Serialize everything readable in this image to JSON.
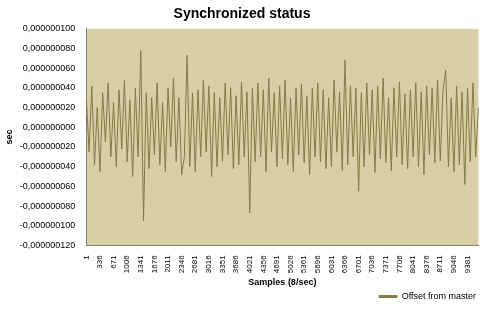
{
  "chart_data": {
    "type": "line",
    "title": "Synchronized status",
    "x_label": "Samples (8/sec)",
    "y_label": "sec",
    "categories": [
      "1",
      null,
      null,
      null,
      null,
      "336",
      null,
      null,
      null,
      null,
      "671",
      null,
      null,
      null,
      null,
      "1006",
      null,
      null,
      null,
      null,
      "1341",
      null,
      null,
      null,
      null,
      "1676",
      null,
      null,
      null,
      null,
      "2011",
      null,
      null,
      null,
      null,
      "2346",
      null,
      null,
      null,
      null,
      "2681",
      null,
      null,
      null,
      null,
      "3016",
      null,
      null,
      null,
      null,
      "3351",
      null,
      null,
      null,
      null,
      "3686",
      null,
      null,
      null,
      null,
      "4021",
      null,
      null,
      null,
      null,
      "4356",
      null,
      null,
      null,
      null,
      "4691",
      null,
      null,
      null,
      null,
      "5026",
      null,
      null,
      null,
      null,
      "5361",
      null,
      null,
      null,
      null,
      "5696",
      null,
      null,
      null,
      null,
      "6031",
      null,
      null,
      null,
      null,
      "6366",
      null,
      null,
      null,
      null,
      "6701",
      null,
      null,
      null,
      null,
      "7036",
      null,
      null,
      null,
      null,
      "7371",
      null,
      null,
      null,
      null,
      "7706",
      null,
      null,
      null,
      null,
      "8041",
      null,
      null,
      null,
      null,
      "8376",
      null,
      null,
      null,
      null,
      "8711",
      null,
      null,
      null,
      null,
      "9046",
      null,
      null,
      null,
      null,
      "9381",
      null,
      null,
      null,
      null
    ],
    "series": [
      {
        "name": "Offset from master",
        "color": "#857a48",
        "values": [
          3e-08,
          -2.5e-08,
          4.2e-08,
          -3.8e-08,
          2e-08,
          -4.5e-08,
          3.5e-08,
          -1.5e-08,
          4.5e-08,
          -3e-08,
          2.5e-08,
          -4e-08,
          3.8e-08,
          -2.2e-08,
          4.8e-08,
          -3.5e-08,
          2.8e-08,
          -5e-08,
          4e-08,
          -3e-08,
          7.8e-08,
          -9.5e-08,
          3.5e-08,
          -4.2e-08,
          3e-08,
          -2.8e-08,
          4.5e-08,
          -3.8e-08,
          2.5e-08,
          -4.5e-08,
          4e-08,
          -2e-08,
          5e-08,
          -3.5e-08,
          3e-08,
          -4.8e-08,
          -3e-08,
          7.3e-08,
          -4e-08,
          3.5e-08,
          -4.5e-08,
          3.8e-08,
          -3e-08,
          4.8e-08,
          -2.5e-08,
          4.2e-08,
          -5e-08,
          3.5e-08,
          -4e-08,
          3e-08,
          -3.5e-08,
          4.5e-08,
          -2.8e-08,
          4e-08,
          -4.2e-08,
          3.2e-08,
          -3.8e-08,
          4.6e-08,
          -3e-08,
          3.6e-08,
          -8.7e-08,
          4e-08,
          -3.5e-08,
          4.5e-08,
          -3e-08,
          3.8e-08,
          -4.5e-08,
          5e-08,
          -2.5e-08,
          3.5e-08,
          -4e-08,
          4.2e-08,
          -3.2e-08,
          4.8e-08,
          -3.8e-08,
          3e-08,
          -4.5e-08,
          4e-08,
          -2.8e-08,
          4.4e-08,
          -3.6e-08,
          3.2e-08,
          -4.8e-08,
          4e-08,
          -3e-08,
          4.5e-08,
          -3.5e-08,
          3.8e-08,
          -4.2e-08,
          3e-08,
          -4e-08,
          4.8e-08,
          -2.5e-08,
          3.6e-08,
          -4.4e-08,
          6.8e-08,
          -3.8e-08,
          4.2e-08,
          -3e-08,
          4e-08,
          -6.5e-08,
          3.5e-08,
          -4e-08,
          4.5e-08,
          -2.8e-08,
          3.8e-08,
          -4.6e-08,
          4.2e-08,
          -3.2e-08,
          5e-08,
          -3.6e-08,
          3e-08,
          -4.4e-08,
          4e-08,
          -3e-08,
          4.6e-08,
          -3.8e-08,
          3.4e-08,
          -4.2e-08,
          3.8e-08,
          -3e-08,
          4.5e-08,
          -4e-08,
          3.6e-08,
          -4.8e-08,
          4.2e-08,
          -2.8e-08,
          4e-08,
          -3.6e-08,
          4.8e-08,
          -3.4e-08,
          3.8e-08,
          5.8e-08,
          -4e-08,
          3e-08,
          -4.5e-08,
          4.2e-08,
          -3.8e-08,
          3.6e-08,
          -5.8e-08,
          4e-08,
          -3.5e-08,
          4.5e-08,
          -3e-08,
          2e-08
        ]
      }
    ],
    "ylim": [
      -1.2e-07,
      1e-07
    ],
    "yticks": [
      {
        "value": -1.2e-07,
        "label": "-0,000000120"
      },
      {
        "value": -1e-07,
        "label": "-0,000000100"
      },
      {
        "value": -8e-08,
        "label": "-0,000000080"
      },
      {
        "value": -6e-08,
        "label": "-0,000000060"
      },
      {
        "value": -4e-08,
        "label": "-0,000000040"
      },
      {
        "value": -2e-08,
        "label": "-0,000000020"
      },
      {
        "value": 0,
        "label": "0,000000000"
      },
      {
        "value": 2e-08,
        "label": "0,000000020"
      },
      {
        "value": 4e-08,
        "label": "0,000000040"
      },
      {
        "value": 6e-08,
        "label": "0,000000060"
      },
      {
        "value": 8e-08,
        "label": "0,000000080"
      },
      {
        "value": 1e-07,
        "label": "0,000000100"
      }
    ],
    "grid": false,
    "legend": "bottom-right"
  }
}
